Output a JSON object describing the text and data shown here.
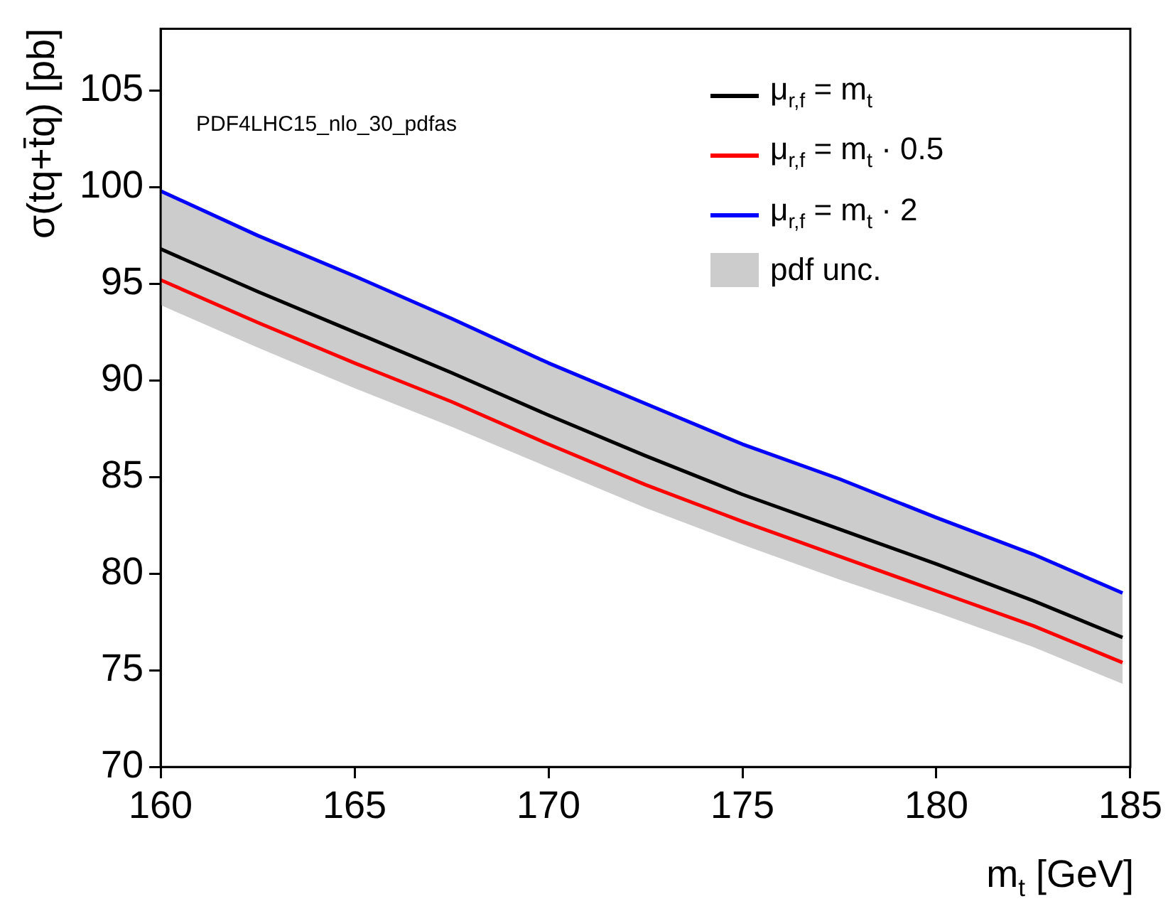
{
  "chart_data": {
    "type": "line",
    "xlabel": "m$_{t}$ [GeV]",
    "ylabel": "σ(tq+t̄q) [pb]",
    "annotations": [
      "PDF4LHC15_nlo_30_pdfas",
      "pdf unc."
    ],
    "x": [
      160,
      162.5,
      165,
      167.5,
      170,
      172.5,
      175,
      177.5,
      180,
      182.5,
      184.8
    ],
    "xlim": [
      160,
      185
    ],
    "xticks": [
      160,
      165,
      170,
      175,
      180,
      185
    ],
    "ylim": [
      70,
      108.2
    ],
    "yticks": [
      70,
      75,
      80,
      85,
      90,
      95,
      100,
      105
    ],
    "legend": "top right",
    "marker": "none",
    "line_style": "solid",
    "series": [
      {
        "name": "μ$_{r,f}$ = m$_{t}$",
        "color": "#000000",
        "values": [
          96.8,
          94.6,
          92.5,
          90.4,
          88.2,
          86.1,
          84.1,
          82.3,
          80.5,
          78.6,
          76.7
        ],
        "lower": [
          93.9,
          91.7,
          89.6,
          87.6,
          85.5,
          83.4,
          81.5,
          79.7,
          78.0,
          76.2,
          74.3
        ],
        "upper": [
          99.9,
          97.6,
          95.5,
          93.3,
          91.0,
          88.9,
          86.8,
          85.0,
          83.0,
          81.1,
          79.1
        ]
      },
      {
        "name": "μ$_{r,f}$ = m$_{t}$ · 0.5",
        "color": "#ff0000",
        "values": [
          95.2,
          93.0,
          90.9,
          88.9,
          86.7,
          84.6,
          82.7,
          80.9,
          79.1,
          77.3,
          75.4
        ]
      },
      {
        "name": "μ$_{r,f}$ = m$_{t}$ · 2",
        "color": "#0000ff",
        "values": [
          99.8,
          97.5,
          95.4,
          93.2,
          90.9,
          88.8,
          86.7,
          84.9,
          82.9,
          81.0,
          79.0
        ]
      }
    ]
  }
}
